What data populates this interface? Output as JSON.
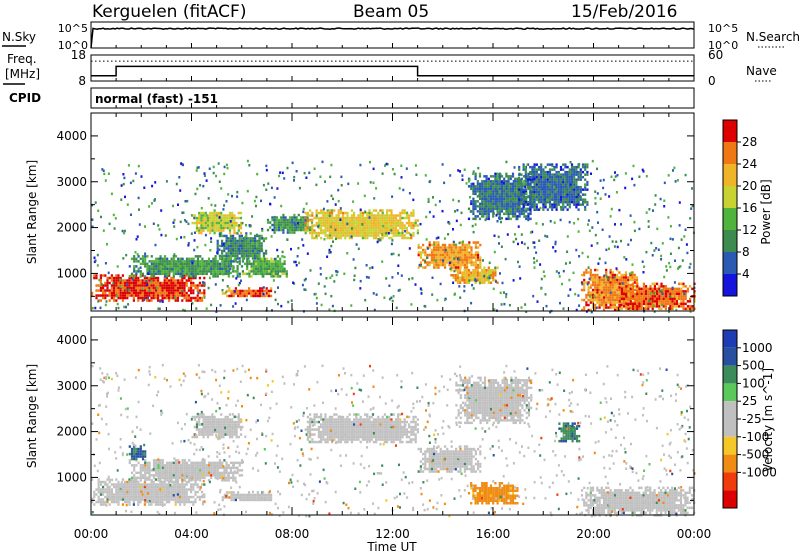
{
  "header": {
    "station": "Kerguelen (fitACF)",
    "beam": "Beam 05",
    "date": "15/Feb/2016"
  },
  "left_labels": {
    "nsky": "N.Sky",
    "freq_line1": "Freq.",
    "freq_line2": "[MHz]",
    "cpid": "CPID"
  },
  "right_labels": {
    "nsearch": "N.Search",
    "nave": "Nave"
  },
  "cpid_text": "normal (fast) -151",
  "colors": {
    "power": [
      "#1414dc",
      "#2a5ab4",
      "#3c8c50",
      "#50b43c",
      "#c8d232",
      "#f0b428",
      "#f07814",
      "#f03c0a",
      "#dc0000"
    ],
    "velocity": [
      "#dc0000",
      "#f03c0a",
      "#f08c14",
      "#f5c828",
      "#c0c0c0",
      "#c0c0c0",
      "#5ac85a",
      "#3c8c5a",
      "#2850a0",
      "#1e3cb4"
    ],
    "ground_scatter": "#c0c0c0"
  },
  "chart_data": [
    {
      "type": "line",
      "name": "nsky-nsearch",
      "ylabel": "N.Sky",
      "ytick_labels": [
        "10^5",
        "10^0"
      ],
      "right_ytick_labels": [
        "10^5",
        "10^0"
      ]
    },
    {
      "type": "line",
      "name": "freq-nave",
      "ylabel": "Freq. [MHz]",
      "ylim": [
        8,
        18
      ],
      "yticks": [
        8,
        13,
        18
      ],
      "right_ylim": [
        0,
        60
      ],
      "right_yticks": [
        0,
        30,
        60
      ],
      "freq_series": {
        "x": [
          0,
          1,
          1,
          13,
          13,
          24
        ],
        "y": [
          10,
          10,
          13.6,
          13.6,
          10,
          10
        ]
      },
      "nave_level": 46
    },
    {
      "type": "heatmap",
      "name": "power",
      "xlabel": "",
      "ylabel": "Slant Range [km]",
      "xlim": [
        0,
        24
      ],
      "ylim": [
        180,
        4500
      ],
      "xticks": [
        0,
        4,
        8,
        12,
        16,
        20,
        24
      ],
      "yticks": [
        1000,
        2000,
        3000,
        4000
      ],
      "colorbar": {
        "label": "Power [dB]",
        "range": [
          0,
          32
        ],
        "ticks": [
          4,
          8,
          12,
          16,
          20,
          24,
          28
        ]
      },
      "regions": [
        {
          "t0": 0,
          "t1": 4.5,
          "r0": 420,
          "r1": 980,
          "value": 29
        },
        {
          "t0": 1.5,
          "t1": 6,
          "r0": 950,
          "r1": 1400,
          "value": 11
        },
        {
          "t0": 4,
          "t1": 6,
          "r0": 1900,
          "r1": 2400,
          "value": 18
        },
        {
          "t0": 5,
          "t1": 7,
          "r0": 1300,
          "r1": 1900,
          "value": 9
        },
        {
          "t0": 5.2,
          "t1": 7.2,
          "r0": 500,
          "r1": 700,
          "value": 27
        },
        {
          "t0": 6,
          "t1": 7.8,
          "r0": 950,
          "r1": 1400,
          "value": 13
        },
        {
          "t0": 7,
          "t1": 8.8,
          "r0": 1900,
          "r1": 2300,
          "value": 10
        },
        {
          "t0": 8.5,
          "t1": 13,
          "r0": 1750,
          "r1": 2400,
          "value": 20
        },
        {
          "t0": 13,
          "t1": 15.5,
          "r0": 1100,
          "r1": 1700,
          "value": 24
        },
        {
          "t0": 14.3,
          "t1": 16.2,
          "r0": 800,
          "r1": 1150,
          "value": 22
        },
        {
          "t0": 15,
          "t1": 17.5,
          "r0": 2200,
          "r1": 3200,
          "value": 8
        },
        {
          "t0": 17,
          "t1": 19.8,
          "r0": 2400,
          "r1": 3400,
          "value": 7
        },
        {
          "t0": 19.5,
          "t1": 21.8,
          "r0": 200,
          "r1": 1100,
          "value": 25
        },
        {
          "t0": 21,
          "t1": 24,
          "r0": 200,
          "r1": 800,
          "value": 27
        }
      ]
    },
    {
      "type": "heatmap",
      "name": "velocity",
      "xlabel": "Time UT",
      "ylabel": "Slant Range [km]",
      "xlim": [
        0,
        24
      ],
      "ylim": [
        180,
        4500
      ],
      "xticks": [
        0,
        4,
        8,
        12,
        16,
        20,
        24
      ],
      "xtick_labels": [
        "00:00",
        "04:00",
        "08:00",
        "12:00",
        "16:00",
        "20:00",
        "00:00"
      ],
      "yticks": [
        1000,
        2000,
        3000,
        4000
      ],
      "colorbar": {
        "label": "Velocity [m s^-1]",
        "ticks": [
          1000,
          500,
          100,
          25,
          -25,
          -100,
          -500,
          -1000
        ]
      },
      "regions": [
        {
          "t0": 0,
          "t1": 4.5,
          "r0": 420,
          "r1": 980,
          "value": 0
        },
        {
          "t0": 1.5,
          "t1": 6,
          "r0": 950,
          "r1": 1400,
          "value": 0
        },
        {
          "t0": 4,
          "t1": 6,
          "r0": 1900,
          "r1": 2400,
          "value": 0
        },
        {
          "t0": 5.2,
          "t1": 7.2,
          "r0": 500,
          "r1": 700,
          "value": 0
        },
        {
          "t0": 8.5,
          "t1": 13,
          "r0": 1750,
          "r1": 2400,
          "value": 0
        },
        {
          "t0": 13,
          "t1": 15.5,
          "r0": 1100,
          "r1": 1700,
          "value": 0
        },
        {
          "t0": 15,
          "t1": 17,
          "r0": 450,
          "r1": 900,
          "value": -150
        },
        {
          "t0": 14.5,
          "t1": 17.5,
          "r0": 2200,
          "r1": 3200,
          "value": 0
        },
        {
          "t0": 19.5,
          "t1": 24,
          "r0": 200,
          "r1": 800,
          "value": 0
        },
        {
          "t0": 1.5,
          "t1": 2.2,
          "r0": 1400,
          "r1": 1700,
          "value": 600
        },
        {
          "t0": 18.6,
          "t1": 19.4,
          "r0": 1800,
          "r1": 2200,
          "value": 400
        }
      ]
    }
  ]
}
